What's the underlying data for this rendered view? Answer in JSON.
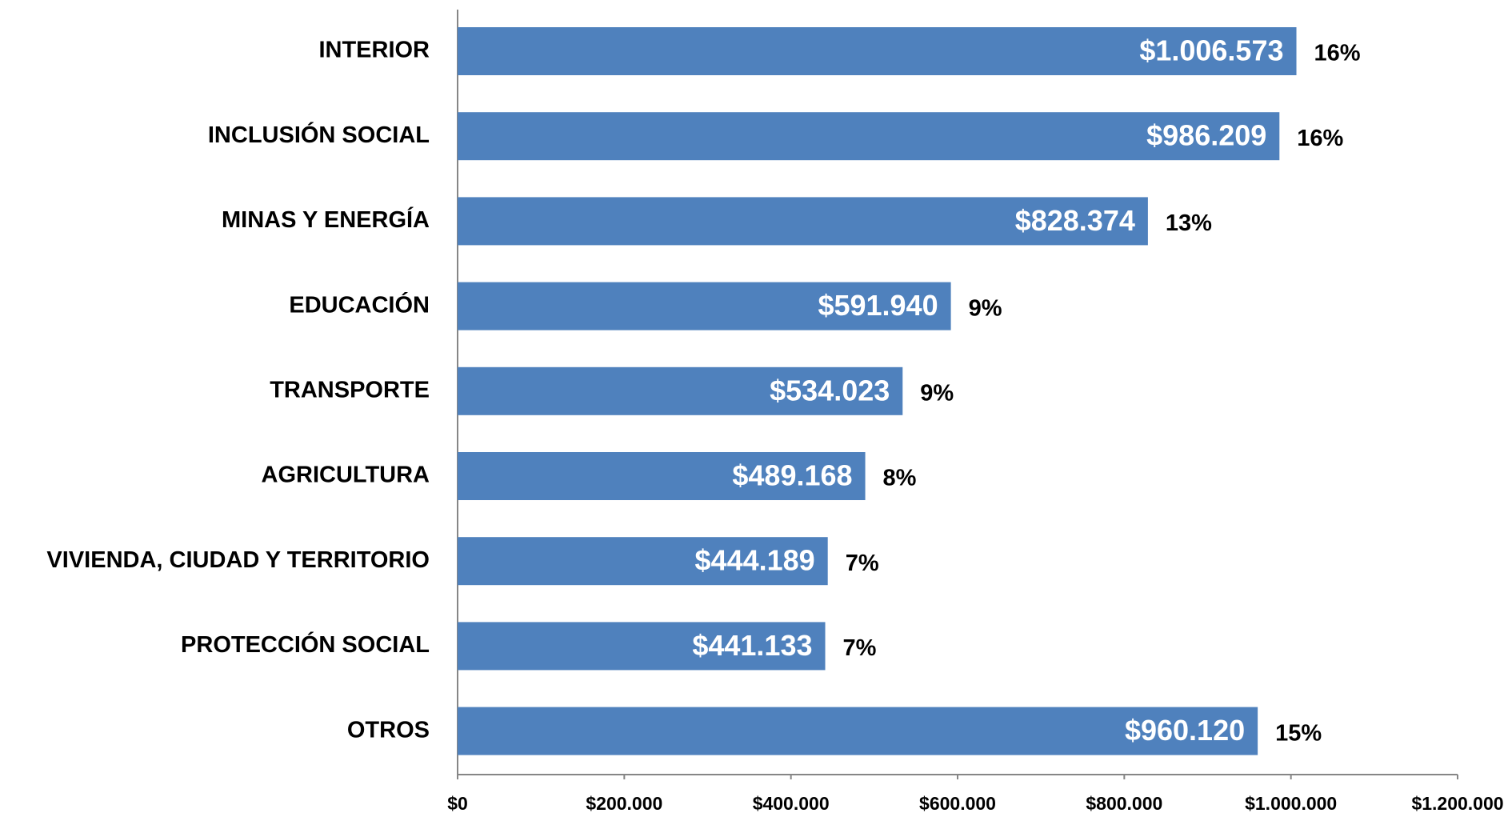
{
  "chart_data": {
    "type": "bar",
    "orientation": "horizontal",
    "categories": [
      "INTERIOR",
      "INCLUSIÓN SOCIAL",
      "MINAS Y ENERGÍA",
      "EDUCACIÓN",
      "TRANSPORTE",
      "AGRICULTURA",
      "VIVIENDA, CIUDAD Y TERRITORIO",
      "PROTECCIÓN SOCIAL",
      "OTROS"
    ],
    "values": [
      1006573,
      986209,
      828374,
      591940,
      534023,
      489168,
      444189,
      441133,
      960120
    ],
    "value_labels": [
      "$1.006.573",
      "$986.209",
      "$828.374",
      "$591.940",
      "$534.023",
      "$489.168",
      "$444.189",
      "$441.133",
      "$960.120"
    ],
    "percent_values": [
      16,
      16,
      13,
      9,
      9,
      8,
      7,
      7,
      15
    ],
    "percent_labels": [
      "16%",
      "16%",
      "13%",
      "9%",
      "9%",
      "8%",
      "7%",
      "7%",
      "15%"
    ],
    "color": "#4f81bd",
    "xlim": [
      0,
      1200000
    ],
    "xticks": [
      {
        "value": 0,
        "label": "$0"
      },
      {
        "value": 200000,
        "label": "$200.000"
      },
      {
        "value": 400000,
        "label": "$400.000"
      },
      {
        "value": 600000,
        "label": "$600.000"
      },
      {
        "value": 800000,
        "label": "$800.000"
      },
      {
        "value": 1000000,
        "label": "$1.000.000"
      },
      {
        "value": 1200000,
        "label": "$1.200.000"
      }
    ],
    "grid": false
  }
}
